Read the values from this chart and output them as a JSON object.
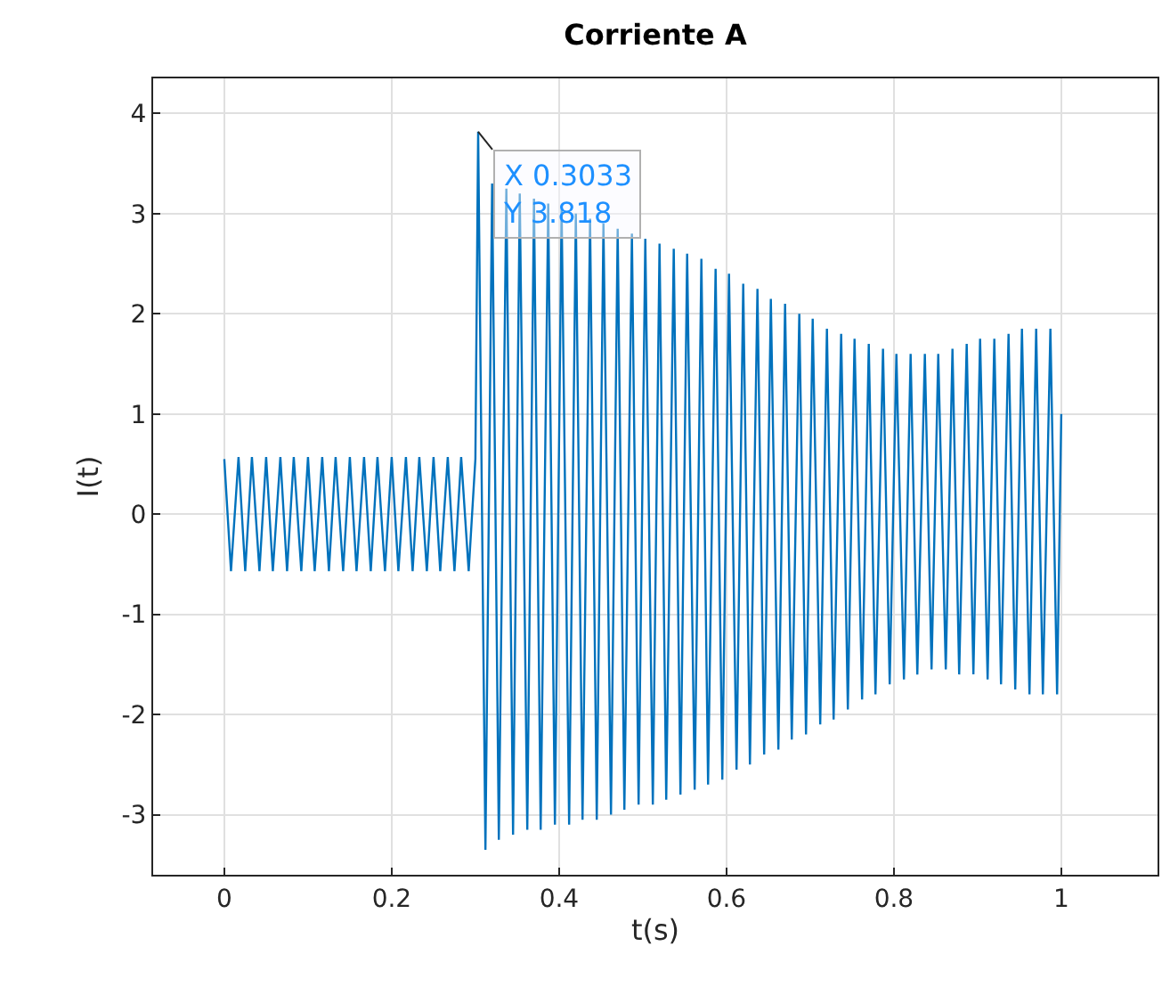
{
  "chart_data": {
    "type": "line",
    "title": "Corriente A",
    "xlabel": "t(s)",
    "ylabel": "I(t)",
    "xlim": [
      -0.085,
      1.115
    ],
    "xticks": [
      0,
      0.2,
      0.4,
      0.6,
      0.8,
      1
    ],
    "ylim": [
      -3.6,
      4.35
    ],
    "yticks": [
      -3,
      -2,
      -1,
      0,
      1,
      2,
      3,
      4
    ],
    "grid": true,
    "marker": "none",
    "line_style": "solid",
    "annotations": [
      {
        "text": "X 0.3033\nY 3.818",
        "x": 0.3033,
        "y": 3.818
      }
    ],
    "series": [
      {
        "color": "#0072bd",
        "x": [
          0,
          0.008,
          0.017,
          0.025,
          0.033,
          0.042,
          0.05,
          0.058,
          0.067,
          0.075,
          0.083,
          0.092,
          0.1,
          0.108,
          0.117,
          0.125,
          0.133,
          0.142,
          0.15,
          0.158,
          0.167,
          0.175,
          0.183,
          0.192,
          0.2,
          0.208,
          0.217,
          0.225,
          0.233,
          0.242,
          0.25,
          0.258,
          0.267,
          0.275,
          0.283,
          0.292,
          0.3,
          0.3033,
          0.312,
          0.32,
          0.328,
          0.337,
          0.345,
          0.353,
          0.362,
          0.37,
          0.378,
          0.387,
          0.395,
          0.403,
          0.412,
          0.42,
          0.428,
          0.437,
          0.445,
          0.453,
          0.462,
          0.47,
          0.478,
          0.487,
          0.495,
          0.503,
          0.512,
          0.52,
          0.528,
          0.537,
          0.545,
          0.553,
          0.562,
          0.57,
          0.578,
          0.587,
          0.595,
          0.603,
          0.612,
          0.62,
          0.628,
          0.637,
          0.645,
          0.653,
          0.662,
          0.67,
          0.678,
          0.687,
          0.695,
          0.703,
          0.712,
          0.72,
          0.728,
          0.737,
          0.745,
          0.753,
          0.762,
          0.77,
          0.778,
          0.787,
          0.795,
          0.803,
          0.812,
          0.82,
          0.828,
          0.837,
          0.845,
          0.853,
          0.862,
          0.87,
          0.878,
          0.887,
          0.895,
          0.903,
          0.912,
          0.92,
          0.928,
          0.937,
          0.945,
          0.953,
          0.962,
          0.97,
          0.978,
          0.987,
          0.995,
          1.0
        ],
        "values": [
          0.55,
          -0.57,
          0.57,
          -0.57,
          0.57,
          -0.57,
          0.57,
          -0.57,
          0.57,
          -0.57,
          0.57,
          -0.57,
          0.57,
          -0.57,
          0.57,
          -0.57,
          0.57,
          -0.57,
          0.57,
          -0.57,
          0.57,
          -0.57,
          0.57,
          -0.57,
          0.57,
          -0.57,
          0.57,
          -0.57,
          0.57,
          -0.57,
          0.57,
          -0.57,
          0.57,
          -0.57,
          0.57,
          -0.57,
          0.55,
          3.818,
          -3.35,
          3.3,
          -3.25,
          3.25,
          -3.2,
          3.2,
          -3.15,
          3.15,
          -3.15,
          3.1,
          -3.1,
          3.05,
          -3.1,
          3.0,
          -3.05,
          2.95,
          -3.05,
          2.9,
          -3.0,
          2.85,
          -2.95,
          2.8,
          -2.9,
          2.75,
          -2.9,
          2.7,
          -2.85,
          2.65,
          -2.8,
          2.6,
          -2.75,
          2.55,
          -2.7,
          2.45,
          -2.65,
          2.4,
          -2.55,
          2.3,
          -2.5,
          2.25,
          -2.4,
          2.15,
          -2.35,
          2.1,
          -2.25,
          2.0,
          -2.2,
          1.95,
          -2.1,
          1.85,
          -2.05,
          1.8,
          -1.95,
          1.75,
          -1.85,
          1.7,
          -1.8,
          1.65,
          -1.7,
          1.6,
          -1.65,
          1.6,
          -1.6,
          1.6,
          -1.55,
          1.6,
          -1.55,
          1.65,
          -1.6,
          1.7,
          -1.6,
          1.75,
          -1.65,
          1.75,
          -1.7,
          1.8,
          -1.75,
          1.85,
          -1.8,
          1.85,
          -1.8,
          1.85,
          -1.8,
          1.0
        ]
      }
    ]
  }
}
